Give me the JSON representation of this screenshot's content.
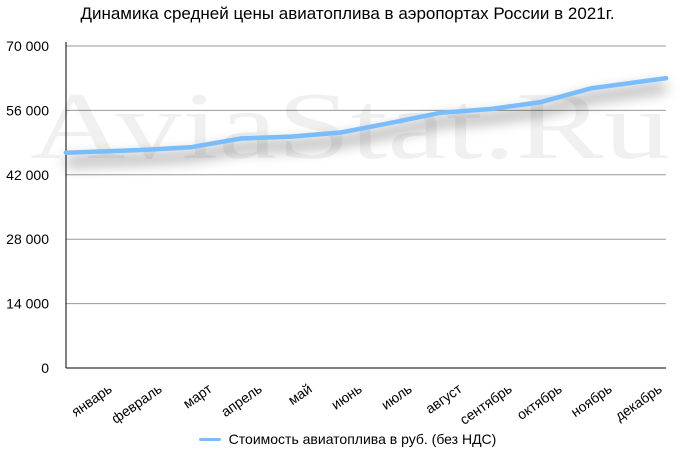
{
  "chart_data": {
    "type": "line",
    "title": "Динамика средней цены авиатоплива в аэропортах России в 2021г.",
    "categories": [
      "январь",
      "февраль",
      "март",
      "апрель",
      "май",
      "июнь",
      "июль",
      "август",
      "сентябрь",
      "октябрь",
      "ноябрь",
      "декабрь"
    ],
    "series": [
      {
        "name": "Стоимость авиатоплива в руб. (без НДС)",
        "color": "#79bdfd",
        "values": [
          46800,
          47400,
          48000,
          49900,
          50300,
          51200,
          53300,
          55500,
          56300,
          57800,
          60800,
          63000
        ]
      }
    ],
    "y_ticks": [
      "0",
      "14 000",
      "28 000",
      "42 000",
      "56 000",
      "70 000"
    ],
    "ylim": [
      0,
      70000
    ],
    "grid": true,
    "legend_position": "bottom",
    "watermark": "AviaStat.Ru"
  }
}
